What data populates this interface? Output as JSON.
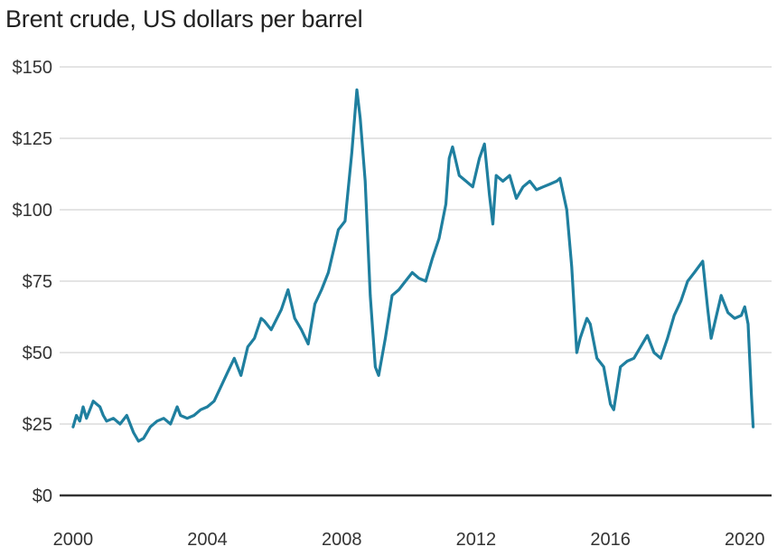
{
  "page": {
    "title": "Brent crude, US dollars per barrel"
  },
  "chart_data": {
    "type": "line",
    "title": "Brent crude, US dollars per barrel",
    "xlabel": "",
    "ylabel": "",
    "xlim": [
      1999.6,
      2020.8
    ],
    "ylim": [
      0,
      150
    ],
    "x_ticks": [
      2000,
      2004,
      2008,
      2012,
      2016,
      2020
    ],
    "x_tick_labels": [
      "2000",
      "2004",
      "2008",
      "2012",
      "2016",
      "2020"
    ],
    "y_ticks": [
      0,
      25,
      50,
      75,
      100,
      125,
      150
    ],
    "y_tick_labels": [
      "$0",
      "$25",
      "$50",
      "$75",
      "$100",
      "$125",
      "$150"
    ],
    "grid": true,
    "legend": "none",
    "colors": {
      "line": "#1f7f9f",
      "grid": "#c8c8c8",
      "baseline": "#333333"
    },
    "series": [
      {
        "x": [
          2000.0,
          2000.1,
          2000.2,
          2000.3,
          2000.4,
          2000.5,
          2000.6,
          2000.7,
          2000.8,
          2000.9,
          2001.0,
          2001.2,
          2001.4,
          2001.6,
          2001.8,
          2001.95,
          2002.1,
          2002.3,
          2002.5,
          2002.7,
          2002.9,
          2003.1,
          2003.2,
          2003.4,
          2003.6,
          2003.8,
          2004.0,
          2004.2,
          2004.4,
          2004.6,
          2004.8,
          2005.0,
          2005.2,
          2005.4,
          2005.6,
          2005.7,
          2005.9,
          2006.2,
          2006.4,
          2006.6,
          2006.8,
          2007.0,
          2007.2,
          2007.4,
          2007.6,
          2007.8,
          2007.9,
          2008.1,
          2008.3,
          2008.45,
          2008.55,
          2008.7,
          2008.85,
          2009.0,
          2009.1,
          2009.3,
          2009.5,
          2009.7,
          2009.9,
          2010.1,
          2010.3,
          2010.5,
          2010.7,
          2010.9,
          2011.1,
          2011.2,
          2011.3,
          2011.5,
          2011.7,
          2011.9,
          2012.1,
          2012.25,
          2012.4,
          2012.5,
          2012.6,
          2012.8,
          2013.0,
          2013.2,
          2013.4,
          2013.6,
          2013.8,
          2014.0,
          2014.2,
          2014.4,
          2014.5,
          2014.7,
          2014.85,
          2015.0,
          2015.1,
          2015.3,
          2015.4,
          2015.6,
          2015.8,
          2016.0,
          2016.1,
          2016.3,
          2016.5,
          2016.7,
          2016.9,
          2017.1,
          2017.3,
          2017.5,
          2017.7,
          2017.9,
          2018.1,
          2018.3,
          2018.5,
          2018.75,
          2018.9,
          2019.0,
          2019.1,
          2019.3,
          2019.5,
          2019.7,
          2019.9,
          2020.0,
          2020.1,
          2020.2,
          2020.25
        ],
        "values": [
          24,
          28,
          26,
          31,
          27,
          30,
          33,
          32,
          31,
          28,
          26,
          27,
          25,
          28,
          22,
          19,
          20,
          24,
          26,
          27,
          25,
          31,
          28,
          27,
          28,
          30,
          31,
          33,
          38,
          43,
          48,
          42,
          52,
          55,
          62,
          61,
          58,
          65,
          72,
          62,
          58,
          53,
          67,
          72,
          78,
          88,
          93,
          96,
          120,
          142,
          132,
          110,
          70,
          45,
          42,
          55,
          70,
          72,
          75,
          78,
          76,
          75,
          83,
          90,
          102,
          118,
          122,
          112,
          110,
          108,
          118,
          123,
          105,
          95,
          112,
          110,
          112,
          104,
          108,
          110,
          107,
          108,
          109,
          110,
          111,
          100,
          80,
          50,
          55,
          62,
          60,
          48,
          45,
          32,
          30,
          45,
          47,
          48,
          52,
          56,
          50,
          48,
          55,
          63,
          68,
          75,
          78,
          82,
          65,
          55,
          60,
          70,
          64,
          62,
          63,
          66,
          60,
          35,
          24
        ]
      }
    ]
  }
}
